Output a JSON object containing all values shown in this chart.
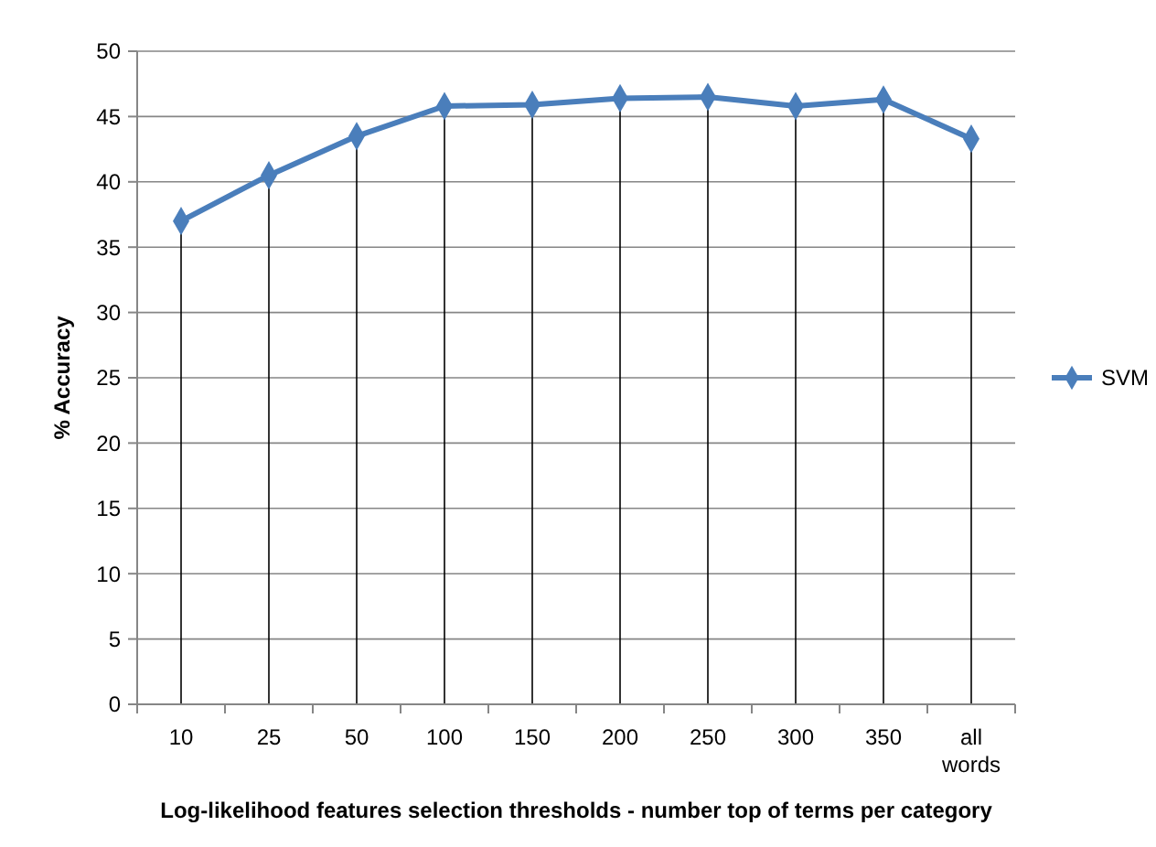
{
  "chart_data": {
    "type": "line",
    "xlabel": "Log-likelihood features selection thresholds - number top of terms per category",
    "ylabel": "% Accuracy",
    "categories": [
      "10",
      "25",
      "50",
      "100",
      "150",
      "200",
      "250",
      "300",
      "350",
      "all words"
    ],
    "series": [
      {
        "name": "SVM",
        "color": "#4a7ebb",
        "values": [
          37.0,
          40.5,
          43.5,
          45.8,
          45.9,
          46.4,
          46.5,
          45.8,
          46.3,
          43.3
        ]
      }
    ],
    "ylim": [
      0,
      50
    ],
    "yticks": [
      0,
      5,
      10,
      15,
      20,
      25,
      30,
      35,
      40,
      45,
      50
    ],
    "grid": true,
    "legend": "right",
    "marker": "diamond",
    "line_style": "solid"
  }
}
